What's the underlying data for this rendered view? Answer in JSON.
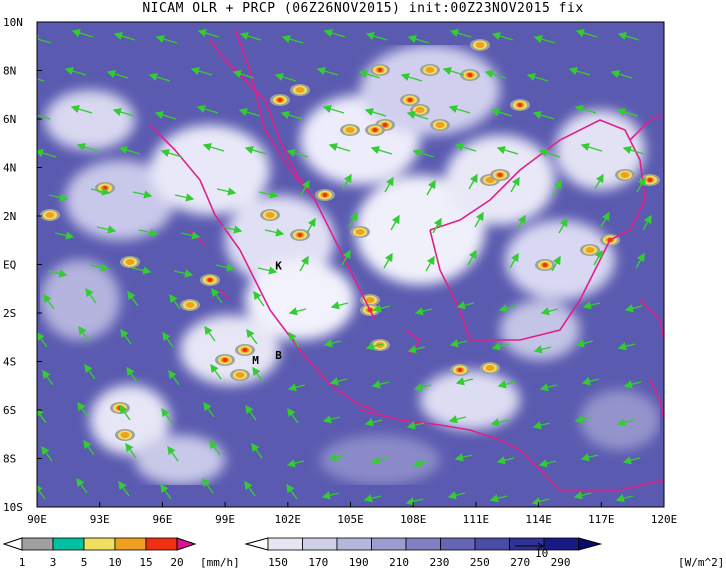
{
  "title": "NICAM OLR + PRCP (06Z26NOV2015) init:00Z23NOV2015 fix",
  "lat_labels": [
    "10N",
    "8N",
    "6N",
    "4N",
    "2N",
    "EQ",
    "2S",
    "4S",
    "6S",
    "8S",
    "10S"
  ],
  "lon_labels": [
    "90E",
    "93E",
    "96E",
    "99E",
    "102E",
    "105E",
    "108E",
    "111E",
    "114E",
    "117E",
    "120E"
  ],
  "place_labels": [
    {
      "text": "K",
      "lon": 101.4,
      "lat": -0.2
    },
    {
      "text": "M",
      "lon": 100.3,
      "lat": -4.1
    },
    {
      "text": "B",
      "lon": 101.4,
      "lat": -3.9
    }
  ],
  "precip_colorbar": {
    "ticks": [
      "1",
      "3",
      "5",
      "10",
      "15",
      "20"
    ],
    "unit": "[mm/h]",
    "colors": [
      "#a0a0a0",
      "#00c0a0",
      "#f0e060",
      "#f0a020",
      "#f03010",
      "#e01090"
    ]
  },
  "olr_colorbar": {
    "ticks": [
      "150",
      "170",
      "190",
      "210",
      "230",
      "250",
      "270",
      "290"
    ],
    "unit": "[W/m^2]",
    "colors": [
      "#ffffff",
      "#e6e6f3",
      "#cfcfe8",
      "#b6b6dc",
      "#9c9cd0",
      "#8080c2",
      "#6666b4",
      "#4c4ca6",
      "#323296",
      "#1a1a86",
      "#0a0a70"
    ]
  },
  "vector_reference": "10",
  "colors": {
    "coast": "#e0208a",
    "wind": "#33cc33",
    "cloud_bg": "#5a5ab0"
  }
}
